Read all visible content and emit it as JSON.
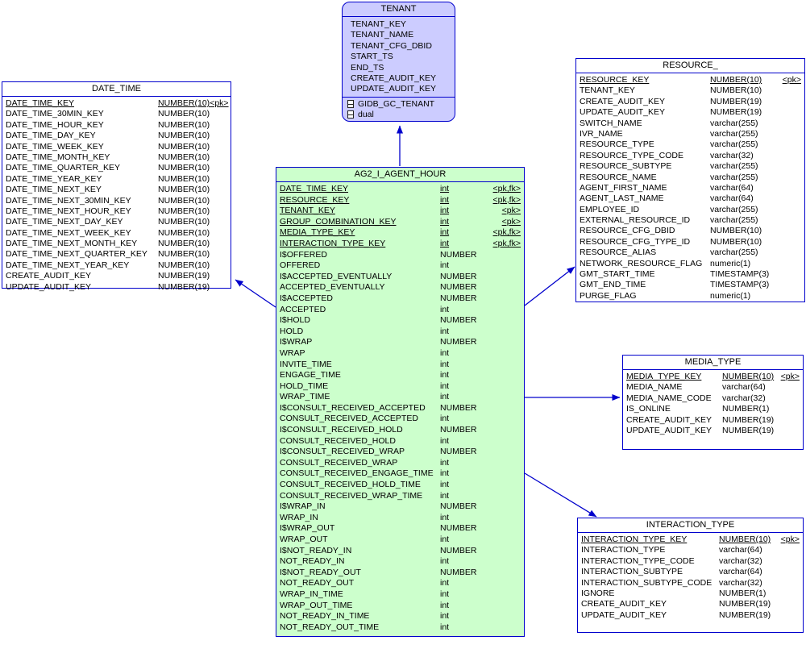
{
  "colors": {
    "accent_blue": "#0000cc",
    "tenant_fill": "#ccccff",
    "agent_hour_fill": "#ccffcc",
    "plain_fill": "#ffffff"
  },
  "tables": {
    "tenant": {
      "name": "TENANT",
      "columns": [
        {
          "name": "TENANT_KEY"
        },
        {
          "name": "TENANT_NAME"
        },
        {
          "name": "TENANT_CFG_DBID"
        },
        {
          "name": "START_TS"
        },
        {
          "name": "END_TS"
        },
        {
          "name": "CREATE_AUDIT_KEY"
        },
        {
          "name": "UPDATE_AUDIT_KEY"
        }
      ],
      "related_objects": [
        "GIDB_GC_TENANT",
        "dual"
      ]
    },
    "date_time": {
      "name": "DATE_TIME",
      "columns": [
        {
          "name": "DATE_TIME_KEY",
          "type": "NUMBER(10)",
          "key": "<pk>",
          "pk": true
        },
        {
          "name": "DATE_TIME_30MIN_KEY",
          "type": "NUMBER(10)"
        },
        {
          "name": "DATE_TIME_HOUR_KEY",
          "type": "NUMBER(10)"
        },
        {
          "name": "DATE_TIME_DAY_KEY",
          "type": "NUMBER(10)"
        },
        {
          "name": "DATE_TIME_WEEK_KEY",
          "type": "NUMBER(10)"
        },
        {
          "name": "DATE_TIME_MONTH_KEY",
          "type": "NUMBER(10)"
        },
        {
          "name": "DATE_TIME_QUARTER_KEY",
          "type": "NUMBER(10)"
        },
        {
          "name": "DATE_TIME_YEAR_KEY",
          "type": "NUMBER(10)"
        },
        {
          "name": "DATE_TIME_NEXT_KEY",
          "type": "NUMBER(10)"
        },
        {
          "name": "DATE_TIME_NEXT_30MIN_KEY",
          "type": "NUMBER(10)"
        },
        {
          "name": "DATE_TIME_NEXT_HOUR_KEY",
          "type": "NUMBER(10)"
        },
        {
          "name": "DATE_TIME_NEXT_DAY_KEY",
          "type": "NUMBER(10)"
        },
        {
          "name": "DATE_TIME_NEXT_WEEK_KEY",
          "type": "NUMBER(10)"
        },
        {
          "name": "DATE_TIME_NEXT_MONTH_KEY",
          "type": "NUMBER(10)"
        },
        {
          "name": "DATE_TIME_NEXT_QUARTER_KEY",
          "type": "NUMBER(10)"
        },
        {
          "name": "DATE_TIME_NEXT_YEAR_KEY",
          "type": "NUMBER(10)"
        },
        {
          "name": "CREATE_AUDIT_KEY",
          "type": "NUMBER(19)"
        },
        {
          "name": "UPDATE_AUDIT_KEY",
          "type": "NUMBER(19)"
        }
      ]
    },
    "agent_hour": {
      "name": "AG2_I_AGENT_HOUR",
      "columns": [
        {
          "name": "DATE_TIME_KEY",
          "type": "int",
          "key": "<pk,fk>",
          "pk": true
        },
        {
          "name": "RESOURCE_KEY",
          "type": "int",
          "key": "<pk,fk>",
          "pk": true
        },
        {
          "name": "TENANT_KEY",
          "type": "int",
          "key": "<pk>",
          "pk": true
        },
        {
          "name": "GROUP_COMBINATION_KEY",
          "type": "int",
          "key": "<pk>",
          "pk": true
        },
        {
          "name": "MEDIA_TYPE_KEY",
          "type": "int",
          "key": "<pk,fk>",
          "pk": true
        },
        {
          "name": "INTERACTION_TYPE_KEY",
          "type": "int",
          "key": "<pk,fk>",
          "pk": true
        },
        {
          "name": "I$OFFERED",
          "type": "NUMBER"
        },
        {
          "name": "OFFERED",
          "type": "int"
        },
        {
          "name": "I$ACCEPTED_EVENTUALLY",
          "type": "NUMBER"
        },
        {
          "name": "ACCEPTED_EVENTUALLY",
          "type": "NUMBER"
        },
        {
          "name": "I$ACCEPTED",
          "type": "NUMBER"
        },
        {
          "name": "ACCEPTED",
          "type": "int"
        },
        {
          "name": "I$HOLD",
          "type": "NUMBER"
        },
        {
          "name": "HOLD",
          "type": "int"
        },
        {
          "name": "I$WRAP",
          "type": "NUMBER"
        },
        {
          "name": "WRAP",
          "type": "int"
        },
        {
          "name": "INVITE_TIME",
          "type": "int"
        },
        {
          "name": "ENGAGE_TIME",
          "type": "int"
        },
        {
          "name": "HOLD_TIME",
          "type": "int"
        },
        {
          "name": "WRAP_TIME",
          "type": "int"
        },
        {
          "name": "I$CONSULT_RECEIVED_ACCEPTED",
          "type": "NUMBER"
        },
        {
          "name": "CONSULT_RECEIVED_ACCEPTED",
          "type": "int"
        },
        {
          "name": "I$CONSULT_RECEIVED_HOLD",
          "type": "NUMBER"
        },
        {
          "name": "CONSULT_RECEIVED_HOLD",
          "type": "int"
        },
        {
          "name": "I$CONSULT_RECEIVED_WRAP",
          "type": "NUMBER"
        },
        {
          "name": "CONSULT_RECEIVED_WRAP",
          "type": "int"
        },
        {
          "name": "CONSULT_RECEIVED_ENGAGE_TIME",
          "type": "int"
        },
        {
          "name": "CONSULT_RECEIVED_HOLD_TIME",
          "type": "int"
        },
        {
          "name": "CONSULT_RECEIVED_WRAP_TIME",
          "type": "int"
        },
        {
          "name": "I$WRAP_IN",
          "type": "NUMBER"
        },
        {
          "name": "WRAP_IN",
          "type": "int"
        },
        {
          "name": "I$WRAP_OUT",
          "type": "NUMBER"
        },
        {
          "name": "WRAP_OUT",
          "type": "int"
        },
        {
          "name": "I$NOT_READY_IN",
          "type": "NUMBER"
        },
        {
          "name": "NOT_READY_IN",
          "type": "int"
        },
        {
          "name": "I$NOT_READY_OUT",
          "type": "NUMBER"
        },
        {
          "name": "NOT_READY_OUT",
          "type": "int"
        },
        {
          "name": "WRAP_IN_TIME",
          "type": "int"
        },
        {
          "name": "WRAP_OUT_TIME",
          "type": "int"
        },
        {
          "name": "NOT_READY_IN_TIME",
          "type": "int"
        },
        {
          "name": "NOT_READY_OUT_TIME",
          "type": "int"
        }
      ]
    },
    "resource": {
      "name": "RESOURCE_",
      "columns": [
        {
          "name": "RESOURCE_KEY",
          "type": "NUMBER(10)",
          "key": "<pk>",
          "pk": true
        },
        {
          "name": "TENANT_KEY",
          "type": "NUMBER(10)"
        },
        {
          "name": "CREATE_AUDIT_KEY",
          "type": "NUMBER(19)"
        },
        {
          "name": "UPDATE_AUDIT_KEY",
          "type": "NUMBER(19)"
        },
        {
          "name": "SWITCH_NAME",
          "type": "varchar(255)"
        },
        {
          "name": "IVR_NAME",
          "type": "varchar(255)"
        },
        {
          "name": "RESOURCE_TYPE",
          "type": "varchar(255)"
        },
        {
          "name": "RESOURCE_TYPE_CODE",
          "type": "varchar(32)"
        },
        {
          "name": "RESOURCE_SUBTYPE",
          "type": "varchar(255)"
        },
        {
          "name": "RESOURCE_NAME",
          "type": "varchar(255)"
        },
        {
          "name": "AGENT_FIRST_NAME",
          "type": "varchar(64)"
        },
        {
          "name": "AGENT_LAST_NAME",
          "type": "varchar(64)"
        },
        {
          "name": "EMPLOYEE_ID",
          "type": "varchar(255)"
        },
        {
          "name": "EXTERNAL_RESOURCE_ID",
          "type": "varchar(255)"
        },
        {
          "name": "RESOURCE_CFG_DBID",
          "type": "NUMBER(10)"
        },
        {
          "name": "RESOURCE_CFG_TYPE_ID",
          "type": "NUMBER(10)"
        },
        {
          "name": "RESOURCE_ALIAS",
          "type": "varchar(255)"
        },
        {
          "name": "NETWORK_RESOURCE_FLAG",
          "type": "numeric(1)"
        },
        {
          "name": "GMT_START_TIME",
          "type": "TIMESTAMP(3)"
        },
        {
          "name": "GMT_END_TIME",
          "type": "TIMESTAMP(3)"
        },
        {
          "name": "PURGE_FLAG",
          "type": "numeric(1)"
        }
      ]
    },
    "media_type": {
      "name": "MEDIA_TYPE",
      "columns": [
        {
          "name": "MEDIA_TYPE_KEY",
          "type": "NUMBER(10)",
          "key": "<pk>",
          "pk": true
        },
        {
          "name": "MEDIA_NAME",
          "type": "varchar(64)"
        },
        {
          "name": "MEDIA_NAME_CODE",
          "type": "varchar(32)"
        },
        {
          "name": "IS_ONLINE",
          "type": "NUMBER(1)"
        },
        {
          "name": "CREATE_AUDIT_KEY",
          "type": "NUMBER(19)"
        },
        {
          "name": "UPDATE_AUDIT_KEY",
          "type": "NUMBER(19)"
        }
      ]
    },
    "interaction_type": {
      "name": "INTERACTION_TYPE",
      "columns": [
        {
          "name": "INTERACTION_TYPE_KEY",
          "type": "NUMBER(10)",
          "key": "<pk>",
          "pk": true
        },
        {
          "name": "INTERACTION_TYPE",
          "type": "varchar(64)"
        },
        {
          "name": "INTERACTION_TYPE_CODE",
          "type": "varchar(32)"
        },
        {
          "name": "INTERACTION_SUBTYPE",
          "type": "varchar(64)"
        },
        {
          "name": "INTERACTION_SUBTYPE_CODE",
          "type": "varchar(32)"
        },
        {
          "name": "IGNORE",
          "type": "NUMBER(1)"
        },
        {
          "name": "CREATE_AUDIT_KEY",
          "type": "NUMBER(19)"
        },
        {
          "name": "UPDATE_AUDIT_KEY",
          "type": "NUMBER(19)"
        }
      ]
    }
  }
}
